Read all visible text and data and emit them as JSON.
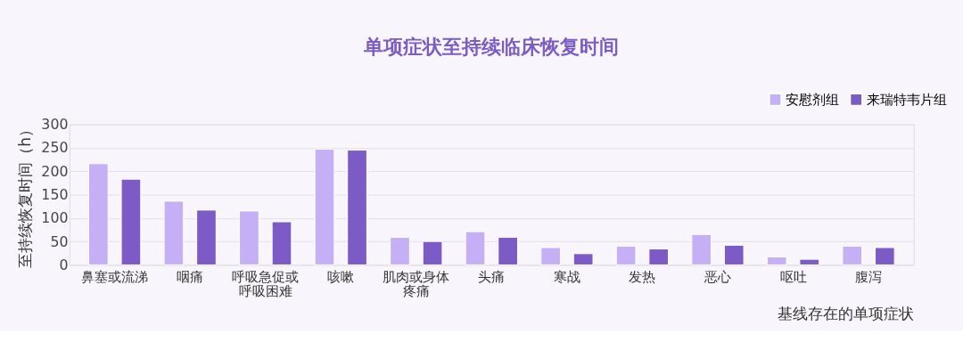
{
  "chart_data": {
    "type": "bar",
    "title": "单项症状至持续临床恢复时间",
    "xlabel": "基线存在的单项症状",
    "ylabel": "至持续恢复时间（h）",
    "categories": [
      "鼻塞或流涕",
      "咽痛",
      "呼吸急促或呼吸困难",
      "咳嗽",
      "肌肉或身体疼痛",
      "头痛",
      "寒战",
      "发热",
      "恶心",
      "呕吐",
      "腹泻"
    ],
    "series": [
      {
        "name": "安慰剂组",
        "color": "#c5b0f5",
        "values": [
          216,
          136,
          115,
          247,
          59,
          71,
          37,
          40,
          65,
          17,
          40
        ]
      },
      {
        "name": "来瑞特韦片组",
        "color": "#7c5bc6",
        "values": [
          183,
          117,
          92,
          245,
          50,
          59,
          24,
          34,
          42,
          12,
          37
        ]
      }
    ],
    "ylim": [
      0,
      300
    ],
    "yticks": [
      0,
      50,
      100,
      150,
      200,
      250,
      300
    ],
    "grid": "y",
    "legend": "top right"
  }
}
